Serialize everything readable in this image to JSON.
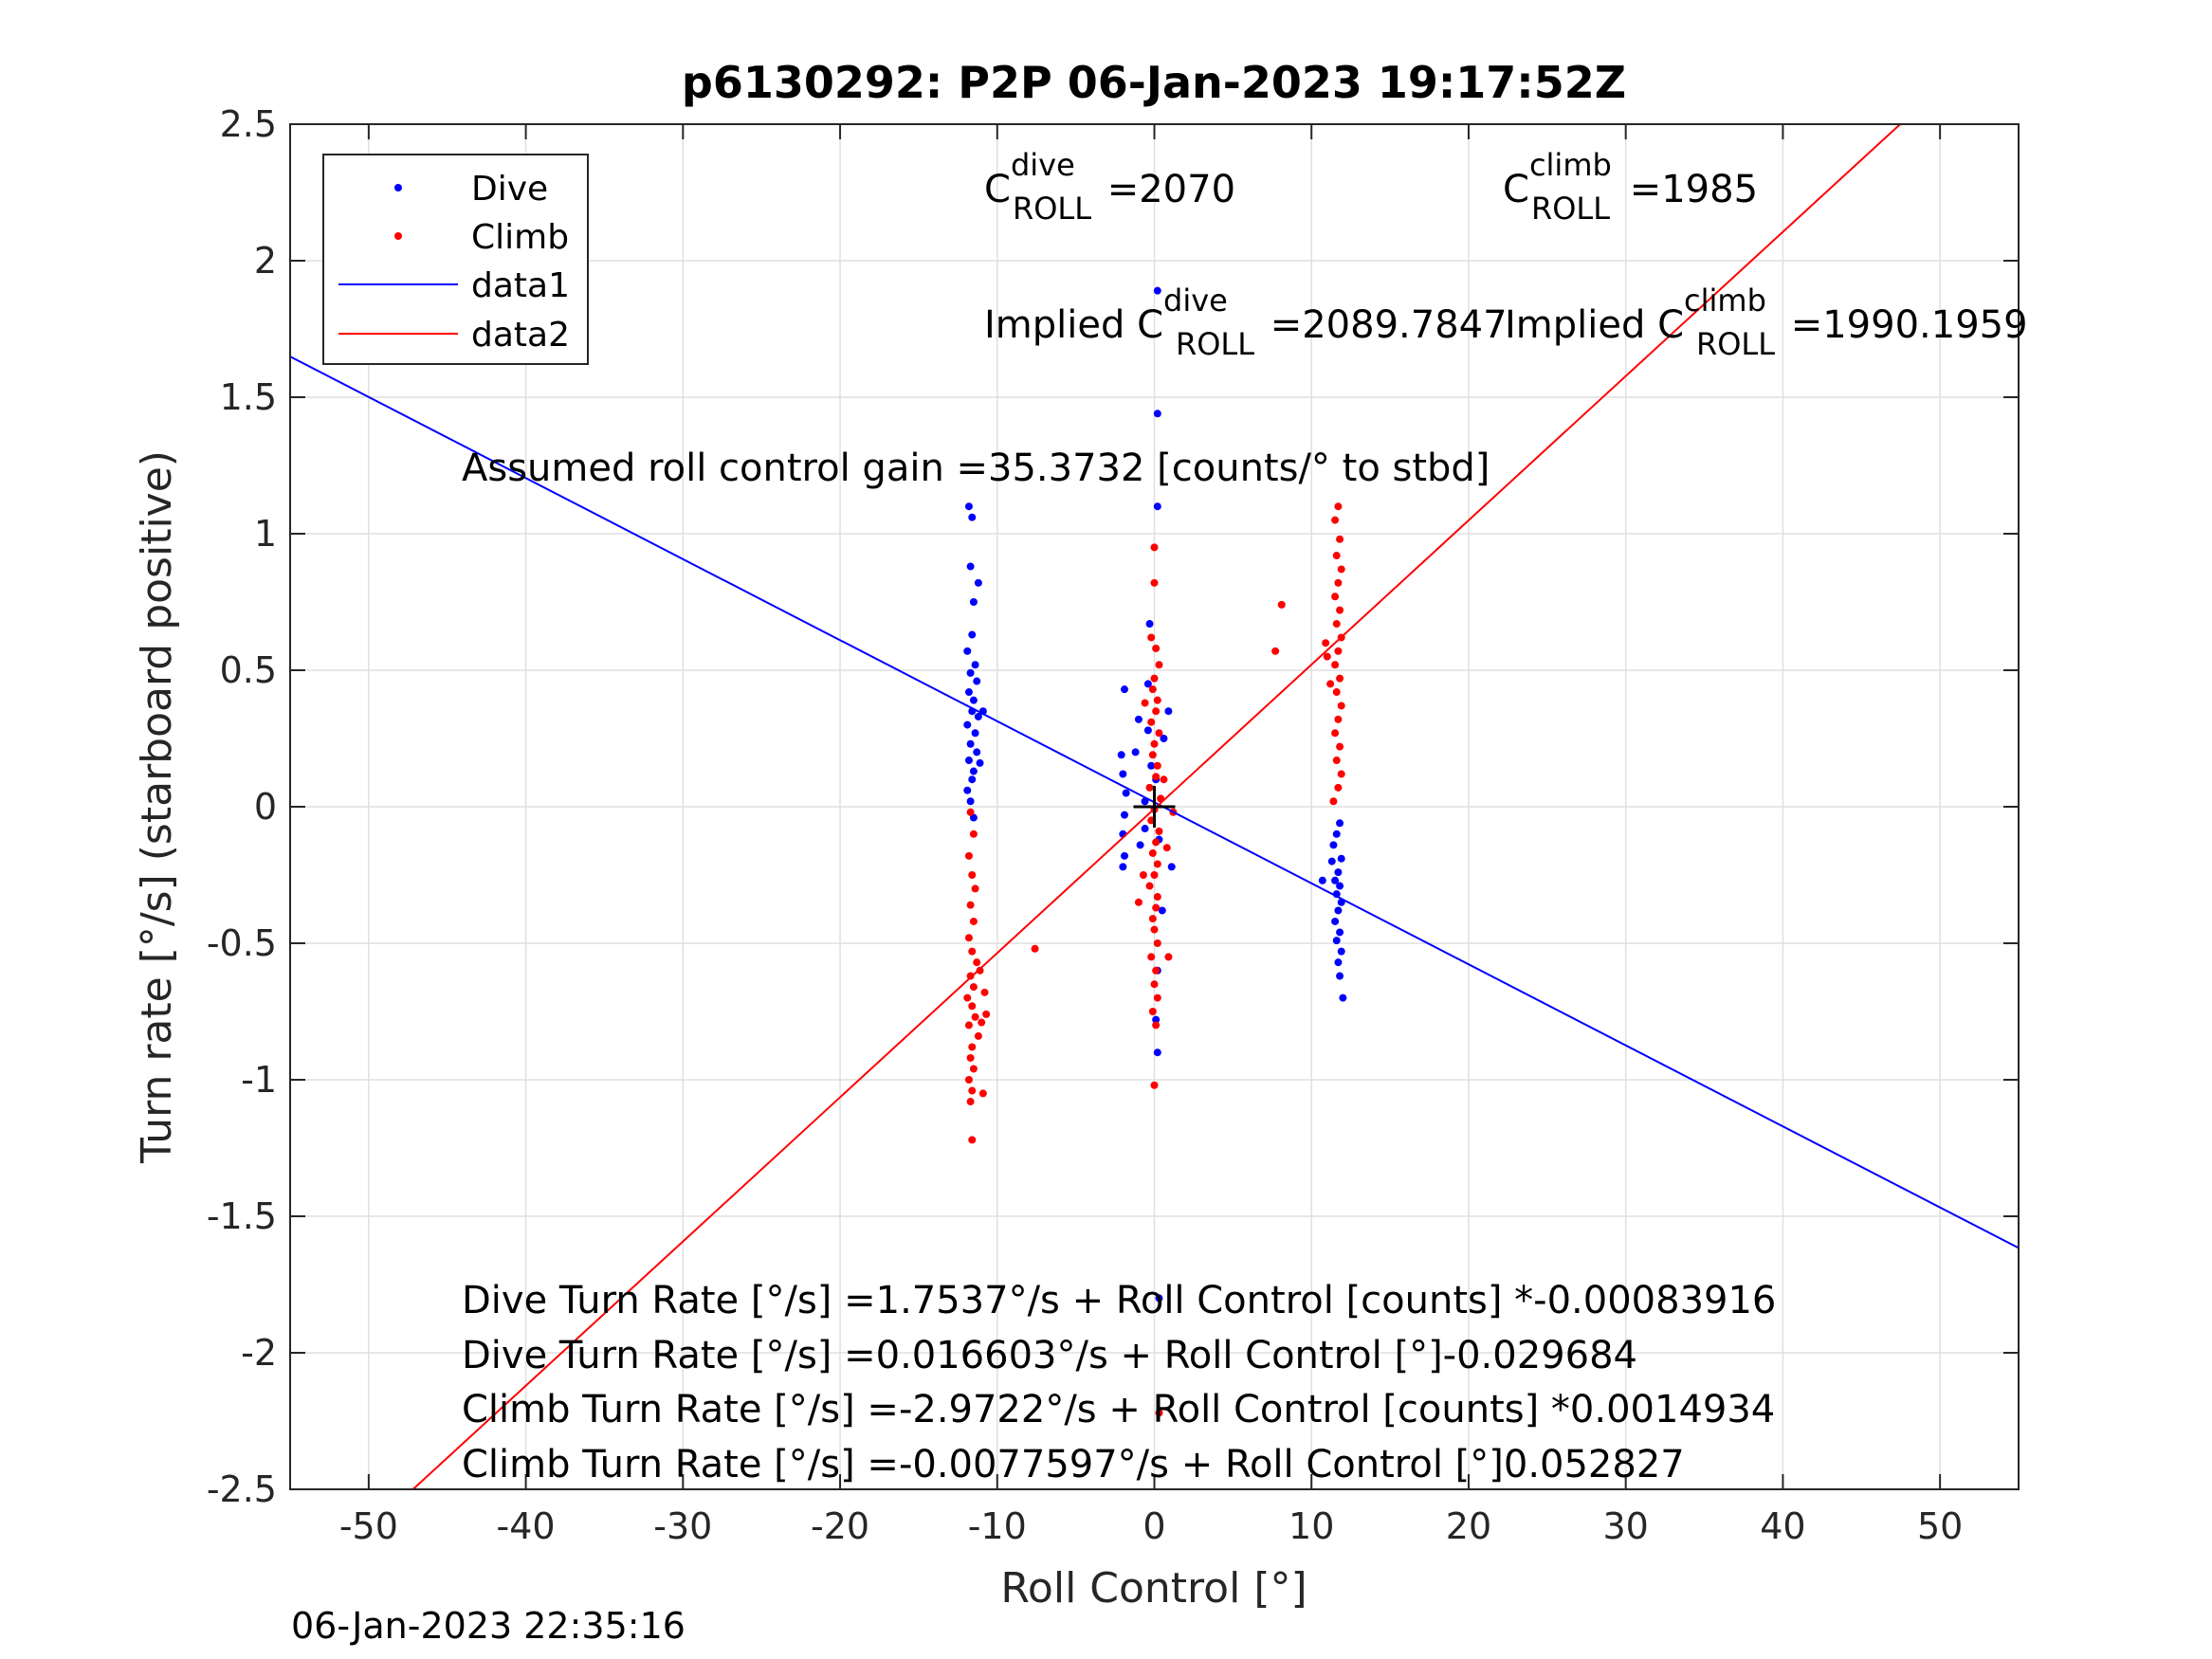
{
  "chart_data": {
    "type": "scatter",
    "title": "p6130292: P2P 06-Jan-2023 19:17:52Z",
    "xlabel": "Roll Control [°]",
    "ylabel": "Turn rate [°/s] (starboard positive)",
    "xlim": [
      -55,
      55
    ],
    "ylim": [
      -2.5,
      2.5
    ],
    "grid": true,
    "legend_placement": "top-left",
    "xticks": [
      "-50",
      "-40",
      "-30",
      "-20",
      "-10",
      "0",
      "10",
      "20",
      "30",
      "40",
      "50"
    ],
    "yticks": [
      "2.5",
      "2",
      "1.5",
      "1",
      "0.5",
      "0",
      "-0.5",
      "-1",
      "-1.5",
      "-2",
      "-2.5"
    ],
    "legend": [
      "Dive",
      "Climb",
      "data1",
      "data2"
    ],
    "colors": {
      "dive": "#0000ff",
      "climb": "#ff0000",
      "grid": "#dfdfdf"
    },
    "series": [
      {
        "name": "Dive",
        "color": "#0000ff",
        "points": [
          [
            -11.8,
            1.1
          ],
          [
            -11.6,
            1.06
          ],
          [
            -11.7,
            0.88
          ],
          [
            -11.2,
            0.82
          ],
          [
            -11.5,
            0.75
          ],
          [
            -11.6,
            0.63
          ],
          [
            -11.9,
            0.57
          ],
          [
            -11.4,
            0.52
          ],
          [
            -11.7,
            0.49
          ],
          [
            -11.3,
            0.46
          ],
          [
            -11.8,
            0.42
          ],
          [
            -11.5,
            0.39
          ],
          [
            -11.6,
            0.35
          ],
          [
            -11.2,
            0.33
          ],
          [
            -11.9,
            0.3
          ],
          [
            -11.4,
            0.27
          ],
          [
            -11.7,
            0.23
          ],
          [
            -11.3,
            0.2
          ],
          [
            -11.8,
            0.17
          ],
          [
            -11.5,
            0.13
          ],
          [
            -11.6,
            0.1
          ],
          [
            -11.1,
            0.16
          ],
          [
            -10.9,
            0.35
          ],
          [
            -11.9,
            0.06
          ],
          [
            -11.7,
            0.02
          ],
          [
            -11.5,
            -0.04
          ],
          [
            -1.9,
            0.43
          ],
          [
            -0.4,
            0.45
          ],
          [
            -1.0,
            0.32
          ],
          [
            -0.3,
            0.67
          ],
          [
            0.2,
            1.89
          ],
          [
            0.2,
            1.44
          ],
          [
            0.2,
            1.1
          ],
          [
            -2.1,
            0.19
          ],
          [
            -2.0,
            0.12
          ],
          [
            -1.8,
            0.05
          ],
          [
            -1.2,
            0.2
          ],
          [
            -0.6,
            0.02
          ],
          [
            -1.9,
            -0.03
          ],
          [
            -2.0,
            -0.1
          ],
          [
            -1.9,
            -0.18
          ],
          [
            -2.0,
            -0.22
          ],
          [
            -0.9,
            -0.14
          ],
          [
            -0.6,
            -0.08
          ],
          [
            -0.4,
            0.28
          ],
          [
            -0.2,
            0.15
          ],
          [
            0.1,
            0.1
          ],
          [
            0.3,
            -0.12
          ],
          [
            0.5,
            -0.38
          ],
          [
            0.2,
            -0.6
          ],
          [
            0.1,
            -0.78
          ],
          [
            0.2,
            -0.9
          ],
          [
            1.1,
            -0.22
          ],
          [
            0.9,
            0.35
          ],
          [
            0.6,
            0.25
          ],
          [
            0.3,
            -1.8
          ],
          [
            11.6,
            -0.1
          ],
          [
            11.8,
            -0.06
          ],
          [
            11.4,
            -0.14
          ],
          [
            11.9,
            -0.19
          ],
          [
            11.7,
            -0.24
          ],
          [
            11.5,
            -0.27
          ],
          [
            11.8,
            -0.29
          ],
          [
            11.6,
            -0.32
          ],
          [
            11.9,
            -0.35
          ],
          [
            11.7,
            -0.38
          ],
          [
            11.5,
            -0.42
          ],
          [
            11.8,
            -0.46
          ],
          [
            11.6,
            -0.49
          ],
          [
            11.9,
            -0.53
          ],
          [
            11.7,
            -0.57
          ],
          [
            11.8,
            -0.62
          ],
          [
            12.0,
            -0.7
          ],
          [
            10.7,
            -0.27
          ],
          [
            11.3,
            -0.2
          ]
        ]
      },
      {
        "name": "Climb",
        "color": "#ff0000",
        "points": [
          [
            -11.7,
            -0.02
          ],
          [
            -11.5,
            -0.1
          ],
          [
            -11.8,
            -0.18
          ],
          [
            -11.6,
            -0.25
          ],
          [
            -11.4,
            -0.3
          ],
          [
            -11.7,
            -0.36
          ],
          [
            -11.5,
            -0.42
          ],
          [
            -11.8,
            -0.48
          ],
          [
            -11.6,
            -0.53
          ],
          [
            -11.3,
            -0.57
          ],
          [
            -11.7,
            -0.62
          ],
          [
            -11.5,
            -0.66
          ],
          [
            -11.9,
            -0.7
          ],
          [
            -11.6,
            -0.73
          ],
          [
            -11.4,
            -0.77
          ],
          [
            -11.8,
            -0.8
          ],
          [
            -11.2,
            -0.84
          ],
          [
            -11.6,
            -0.88
          ],
          [
            -11.7,
            -0.92
          ],
          [
            -11.5,
            -0.96
          ],
          [
            -11.8,
            -1.0
          ],
          [
            -11.6,
            -1.04
          ],
          [
            -11.7,
            -1.08
          ],
          [
            -11.6,
            -1.22
          ],
          [
            -11.0,
            -0.79
          ],
          [
            -10.7,
            -0.76
          ],
          [
            -10.8,
            -0.68
          ],
          [
            -11.1,
            -0.6
          ],
          [
            -10.9,
            -1.05
          ],
          [
            -7.6,
            -0.52
          ],
          [
            -0.2,
            0.62
          ],
          [
            0.1,
            0.58
          ],
          [
            0.3,
            0.52
          ],
          [
            0.0,
            0.47
          ],
          [
            -0.1,
            0.43
          ],
          [
            0.2,
            0.39
          ],
          [
            0.1,
            0.35
          ],
          [
            -0.2,
            0.31
          ],
          [
            0.3,
            0.27
          ],
          [
            0.0,
            0.23
          ],
          [
            -0.1,
            0.19
          ],
          [
            0.2,
            0.15
          ],
          [
            0.1,
            0.11
          ],
          [
            -0.3,
            0.07
          ],
          [
            0.4,
            0.03
          ],
          [
            0.0,
            -0.01
          ],
          [
            -0.2,
            -0.05
          ],
          [
            0.3,
            -0.09
          ],
          [
            0.1,
            -0.13
          ],
          [
            -0.1,
            -0.17
          ],
          [
            0.2,
            -0.21
          ],
          [
            0.0,
            -0.25
          ],
          [
            -0.3,
            -0.29
          ],
          [
            0.2,
            -0.33
          ],
          [
            0.1,
            -0.37
          ],
          [
            -0.1,
            -0.41
          ],
          [
            0.0,
            -0.45
          ],
          [
            0.2,
            -0.5
          ],
          [
            -0.2,
            -0.55
          ],
          [
            0.1,
            -0.6
          ],
          [
            0.0,
            -0.65
          ],
          [
            0.2,
            -0.7
          ],
          [
            -0.1,
            -0.75
          ],
          [
            0.1,
            -0.8
          ],
          [
            0.0,
            -1.02
          ],
          [
            -1.0,
            -0.35
          ],
          [
            -0.7,
            -0.25
          ],
          [
            0.8,
            -0.15
          ],
          [
            1.2,
            -0.02
          ],
          [
            0.6,
            0.1
          ],
          [
            -0.6,
            0.38
          ],
          [
            0.9,
            -0.55
          ],
          [
            0.0,
            0.82
          ],
          [
            0.0,
            0.95
          ],
          [
            0.3,
            -2.22
          ],
          [
            11.7,
            1.1
          ],
          [
            11.5,
            1.05
          ],
          [
            11.8,
            0.98
          ],
          [
            11.6,
            0.92
          ],
          [
            11.9,
            0.87
          ],
          [
            11.7,
            0.82
          ],
          [
            11.5,
            0.77
          ],
          [
            11.8,
            0.72
          ],
          [
            11.6,
            0.67
          ],
          [
            11.9,
            0.62
          ],
          [
            11.7,
            0.57
          ],
          [
            11.5,
            0.52
          ],
          [
            11.8,
            0.47
          ],
          [
            11.6,
            0.42
          ],
          [
            11.9,
            0.37
          ],
          [
            11.7,
            0.32
          ],
          [
            11.5,
            0.27
          ],
          [
            11.8,
            0.22
          ],
          [
            11.6,
            0.17
          ],
          [
            11.9,
            0.12
          ],
          [
            11.7,
            0.07
          ],
          [
            11.4,
            0.02
          ],
          [
            11.0,
            0.55
          ],
          [
            11.2,
            0.45
          ],
          [
            10.9,
            0.6
          ],
          [
            8.1,
            0.74
          ],
          [
            7.7,
            0.57
          ]
        ]
      }
    ],
    "fit_lines": [
      {
        "name": "data1",
        "color": "#0000ff",
        "x": [
          -55,
          55
        ],
        "y": [
          1.649,
          -1.616
        ]
      },
      {
        "name": "data2",
        "color": "#ff0000",
        "x": [
          -55,
          55
        ],
        "y": [
          -2.913,
          2.898
        ]
      }
    ],
    "crosshair": {
      "x": 0,
      "y": 0,
      "color": "#000000"
    }
  },
  "annotations": {
    "c_dive_base": "C",
    "c_dive_sup": "dive",
    "c_dive_sub": "ROLL",
    "c_dive_val": " =2070",
    "c_climb_base": "C",
    "c_climb_sup": "climb",
    "c_climb_sub": "ROLL",
    "c_climb_val": " =1985",
    "implied_dive_prefix": "Implied C",
    "implied_dive_sup": "dive",
    "implied_dive_sub": "ROLL",
    "implied_dive_val": " =2089.7847",
    "implied_climb_prefix": "Implied C",
    "implied_climb_sup": "climb",
    "implied_climb_sub": "ROLL",
    "implied_climb_val": " =1990.1959",
    "gain": "Assumed roll control gain =35.3732 [counts/° to stbd]",
    "eq1": "Dive Turn Rate [°/s] =1.7537°/s + Roll Control [counts] *-0.00083916",
    "eq2": "Dive Turn Rate [°/s] =0.016603°/s + Roll Control [°]-0.029684",
    "eq3": "Climb Turn Rate [°/s] =-2.9722°/s + Roll Control [counts] *0.0014934",
    "eq4": "Climb Turn Rate [°/s] =-0.0077597°/s + Roll Control [°]0.052827"
  },
  "timestamp": "06-Jan-2023 22:35:16"
}
